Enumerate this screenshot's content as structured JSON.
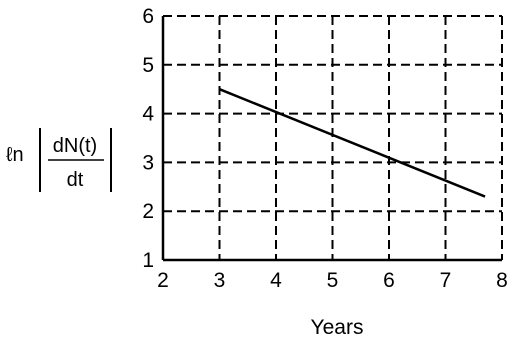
{
  "chart_data": {
    "type": "line",
    "xlabel": "Years",
    "ylabel": {
      "prefix": "ℓn",
      "numerator": "dN(t)",
      "denominator": "dt"
    },
    "xlim": [
      2,
      8
    ],
    "ylim": [
      1,
      6
    ],
    "x_ticks": [
      "2",
      "3",
      "4",
      "5",
      "6",
      "7",
      "8"
    ],
    "y_ticks": [
      "1",
      "2",
      "3",
      "4",
      "5",
      "6"
    ],
    "grid": "dashed",
    "series": [
      {
        "x": [
          3,
          7.7
        ],
        "y": [
          4.5,
          2.3
        ]
      }
    ],
    "colors": {
      "line": "#000000",
      "grid": "#000000"
    }
  }
}
